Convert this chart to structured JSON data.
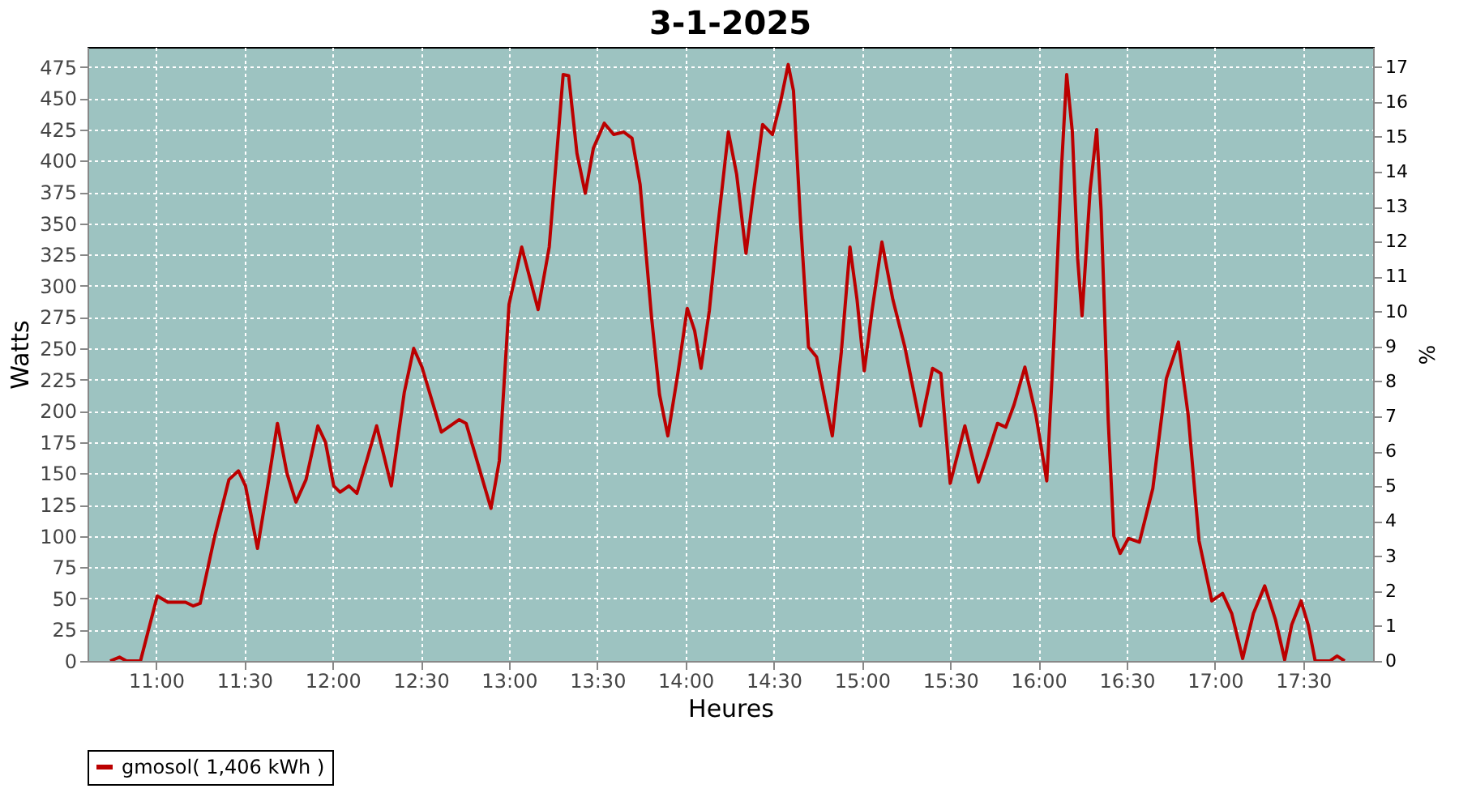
{
  "chart_data": {
    "type": "line",
    "title": "3-1-2025",
    "xlabel": "Heures",
    "ylabel": "Watts",
    "y2label": "%",
    "x": [
      10.74,
      10.793,
      10.833,
      10.912,
      11.007,
      11.067,
      11.167,
      11.21,
      11.25,
      11.333,
      11.413,
      11.467,
      11.507,
      11.575,
      11.633,
      11.688,
      11.742,
      11.793,
      11.85,
      11.917,
      11.96,
      12.007,
      12.043,
      12.093,
      12.138,
      12.193,
      12.25,
      12.333,
      12.407,
      12.46,
      12.507,
      12.617,
      12.717,
      12.757,
      12.85,
      12.898,
      12.945,
      13.0,
      13.072,
      13.165,
      13.228,
      13.307,
      13.338,
      13.385,
      13.432,
      13.478,
      13.54,
      13.593,
      13.65,
      13.697,
      13.743,
      13.807,
      13.853,
      13.9,
      13.957,
      14.01,
      14.052,
      14.088,
      14.135,
      14.183,
      14.243,
      14.29,
      14.343,
      14.383,
      14.437,
      14.493,
      14.54,
      14.582,
      14.612,
      14.65,
      14.697,
      14.743,
      14.79,
      14.832,
      14.883,
      14.932,
      14.972,
      15.013,
      15.057,
      15.113,
      15.175,
      15.243,
      15.332,
      15.4,
      15.447,
      15.5,
      15.583,
      15.66,
      15.707,
      15.768,
      15.815,
      15.862,
      15.923,
      15.985,
      16.047,
      16.087,
      16.13,
      16.16,
      16.192,
      16.222,
      16.247,
      16.293,
      16.33,
      16.355,
      16.395,
      16.427,
      16.463,
      16.51,
      16.572,
      16.648,
      16.725,
      16.793,
      16.848,
      16.91,
      16.982,
      17.043,
      17.095,
      17.157,
      17.218,
      17.282,
      17.343,
      17.395,
      17.435,
      17.488,
      17.528,
      17.568,
      17.652,
      17.692,
      17.735
    ],
    "series": [
      {
        "name": "gmosol( 1,406 kWh )",
        "color": "#bb0000",
        "values": [
          0,
          3,
          0,
          0,
          52,
          47,
          47,
          44,
          46,
          100,
          145,
          152,
          140,
          90,
          140,
          190,
          150,
          127,
          145,
          188,
          175,
          140,
          135,
          140,
          134,
          160,
          188,
          140,
          215,
          250,
          235,
          183,
          193,
          190,
          145,
          122,
          160,
          285,
          331,
          281,
          331,
          469,
          468,
          406,
          374,
          410,
          430,
          421,
          423,
          418,
          381,
          276,
          213,
          180,
          230,
          282,
          264,
          234,
          280,
          347,
          423,
          389,
          326,
          372,
          429,
          421,
          448,
          477,
          456,
          356,
          251,
          243,
          209,
          180,
          247,
          331,
          289,
          232,
          280,
          335,
          289,
          251,
          188,
          234,
          230,
          142,
          188,
          143,
          163,
          190,
          187,
          205,
          235,
          197,
          144,
          255,
          393,
          469,
          423,
          322,
          276,
          377,
          425,
          360,
          193,
          100,
          86,
          98,
          95,
          138,
          226,
          255,
          197,
          96,
          48,
          54,
          38,
          2,
          38,
          60,
          33,
          1,
          29,
          48,
          29,
          0,
          0,
          4,
          0
        ]
      }
    ],
    "xlim": [
      10.612,
      17.896
    ],
    "xticks": [
      {
        "value": 11,
        "label": "11:00"
      },
      {
        "value": 11.5,
        "label": "11:30"
      },
      {
        "value": 12,
        "label": "12:00"
      },
      {
        "value": 12.5,
        "label": "12:30"
      },
      {
        "value": 13,
        "label": "13:00"
      },
      {
        "value": 13.5,
        "label": "13:30"
      },
      {
        "value": 14,
        "label": "14:00"
      },
      {
        "value": 14.5,
        "label": "14:30"
      },
      {
        "value": 15,
        "label": "15:00"
      },
      {
        "value": 15.5,
        "label": "15:30"
      },
      {
        "value": 16,
        "label": "16:00"
      },
      {
        "value": 16.5,
        "label": "16:30"
      },
      {
        "value": 17,
        "label": "17:00"
      },
      {
        "value": 17.5,
        "label": "17:30"
      }
    ],
    "ylim": [
      0,
      491
    ],
    "yticks": [
      0,
      25,
      50,
      75,
      100,
      125,
      150,
      175,
      200,
      225,
      250,
      275,
      300,
      325,
      350,
      375,
      400,
      425,
      450,
      475
    ],
    "y2lim": [
      0,
      17.57
    ],
    "y2ticks": [
      0,
      1,
      2,
      3,
      4,
      5,
      6,
      7,
      8,
      9,
      10,
      11,
      12,
      13,
      14,
      15,
      16,
      17
    ],
    "grid": true,
    "legend": "bottom",
    "marker": "none",
    "line_style": "solid"
  }
}
